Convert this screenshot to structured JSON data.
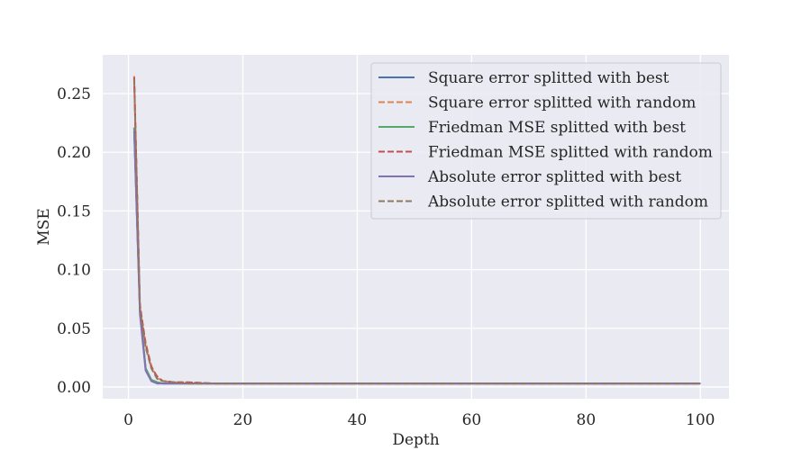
{
  "chart_data": {
    "type": "line",
    "title": "",
    "xlabel": "Depth",
    "ylabel": "MSE",
    "xlim": [
      -4.5,
      105
    ],
    "ylim": [
      -0.01,
      0.283
    ],
    "xticks": [
      0,
      20,
      40,
      60,
      80,
      100
    ],
    "yticks": [
      0.0,
      0.05,
      0.1,
      0.15,
      0.2,
      0.25
    ],
    "xtick_labels": [
      "0",
      "20",
      "40",
      "60",
      "80",
      "100"
    ],
    "ytick_labels": [
      "0.00",
      "0.05",
      "0.10",
      "0.15",
      "0.20",
      "0.25"
    ],
    "grid": true,
    "background": "#eaeaf2",
    "legend_position": "top-right",
    "series": [
      {
        "name": "Square error splitted with best",
        "color": "#4c72b0",
        "dash": "solid",
        "x": [
          1,
          2,
          3,
          4,
          5,
          6,
          8,
          10,
          15,
          20,
          30,
          40,
          50,
          60,
          70,
          80,
          90,
          100
        ],
        "y": [
          0.221,
          0.065,
          0.016,
          0.006,
          0.004,
          0.003,
          0.003,
          0.003,
          0.003,
          0.003,
          0.003,
          0.003,
          0.003,
          0.003,
          0.003,
          0.003,
          0.003,
          0.003
        ]
      },
      {
        "name": "Square error splitted with random",
        "color": "#dd8452",
        "dash": "dashed",
        "x": [
          1,
          2,
          3,
          4,
          5,
          6,
          8,
          10,
          15,
          20,
          30,
          40,
          50,
          60,
          70,
          80,
          90,
          100
        ],
        "y": [
          0.265,
          0.068,
          0.038,
          0.018,
          0.008,
          0.005,
          0.004,
          0.004,
          0.003,
          0.003,
          0.003,
          0.003,
          0.003,
          0.003,
          0.003,
          0.003,
          0.003,
          0.003
        ]
      },
      {
        "name": "Friedman MSE splitted with best",
        "color": "#55a868",
        "dash": "solid",
        "x": [
          1,
          2,
          3,
          4,
          5,
          6,
          8,
          10,
          15,
          20,
          30,
          40,
          50,
          60,
          70,
          80,
          90,
          100
        ],
        "y": [
          0.221,
          0.065,
          0.016,
          0.006,
          0.004,
          0.003,
          0.003,
          0.003,
          0.003,
          0.003,
          0.003,
          0.003,
          0.003,
          0.003,
          0.003,
          0.003,
          0.003,
          0.003
        ]
      },
      {
        "name": "Friedman MSE splitted with random",
        "color": "#c44e52",
        "dash": "dashed",
        "x": [
          1,
          2,
          3,
          4,
          5,
          6,
          8,
          10,
          15,
          20,
          30,
          40,
          50,
          60,
          70,
          80,
          90,
          100
        ],
        "y": [
          0.264,
          0.07,
          0.036,
          0.017,
          0.009,
          0.005,
          0.004,
          0.004,
          0.003,
          0.003,
          0.003,
          0.003,
          0.003,
          0.003,
          0.003,
          0.003,
          0.003,
          0.003
        ]
      },
      {
        "name": "Absolute error splitted with best",
        "color": "#8172b3",
        "dash": "solid",
        "x": [
          1,
          2,
          3,
          4,
          5,
          6,
          8,
          10,
          15,
          20,
          30,
          40,
          50,
          60,
          70,
          80,
          90,
          100
        ],
        "y": [
          0.218,
          0.062,
          0.014,
          0.005,
          0.003,
          0.003,
          0.003,
          0.003,
          0.003,
          0.003,
          0.003,
          0.003,
          0.003,
          0.003,
          0.003,
          0.003,
          0.003,
          0.003
        ]
      },
      {
        "name": "Absolute error splitted with random",
        "color": "#937860",
        "dash": "dashed",
        "x": [
          1,
          2,
          3,
          4,
          5,
          6,
          8,
          10,
          15,
          20,
          30,
          40,
          50,
          60,
          70,
          80,
          90,
          100
        ],
        "y": [
          0.262,
          0.066,
          0.034,
          0.016,
          0.007,
          0.005,
          0.004,
          0.003,
          0.003,
          0.003,
          0.003,
          0.003,
          0.003,
          0.003,
          0.003,
          0.003,
          0.003,
          0.003
        ]
      }
    ]
  }
}
